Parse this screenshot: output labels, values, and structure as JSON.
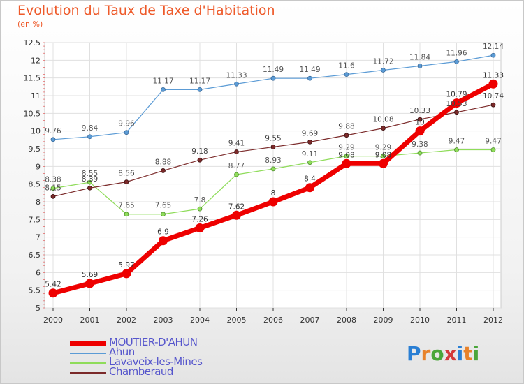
{
  "header": {
    "title": "Evolution du Taux de Taxe d'Habitation",
    "unit": "(en %)"
  },
  "logo": {
    "text": "Proxiti",
    "letter_colors": [
      "#2a7fd4",
      "#e8822a",
      "#4aa63a",
      "#d43a3a",
      "#2a7fd4",
      "#e8822a",
      "#4aa63a"
    ]
  },
  "chart_data": {
    "type": "line",
    "title": "Evolution du Taux de Taxe d'Habitation",
    "subtitle": "(en %)",
    "xlabel": "",
    "ylabel": "",
    "x": [
      "2000",
      "2001",
      "2002",
      "2003",
      "2004",
      "2005",
      "2006",
      "2007",
      "2008",
      "2009",
      "2010",
      "2011",
      "2012"
    ],
    "ylim": [
      5,
      12.5
    ],
    "yticks": [
      "5",
      "5.5",
      "6",
      "6.5",
      "7",
      "7.5",
      "8",
      "8.5",
      "9",
      "9.5",
      "10",
      "10.5",
      "11",
      "11.5",
      "12",
      "12.5"
    ],
    "grid": true,
    "legend_position": "bottom-left",
    "series": [
      {
        "name": "MOUTIER-D'AHUN",
        "color": "#ee0000",
        "values": [
          5.42,
          5.69,
          5.97,
          6.9,
          7.26,
          7.62,
          8,
          8.4,
          9.08,
          9.08,
          10,
          10.79,
          11.33
        ],
        "labels": [
          "5.42",
          "5.69",
          "5.97",
          "6.9",
          "7.26",
          "7.62",
          "8",
          "8.4",
          "9.08",
          "9.08",
          "10",
          "10.79",
          "11.33"
        ]
      },
      {
        "name": "Ahun",
        "color": "#5b9bd5",
        "values": [
          9.76,
          9.84,
          9.96,
          11.17,
          11.17,
          11.33,
          11.49,
          11.49,
          11.6,
          11.72,
          11.84,
          11.96,
          12.14
        ],
        "labels": [
          "9.76",
          "9.84",
          "9.96",
          "11.17",
          "11.17",
          "11.33",
          "11.49",
          "11.49",
          "11.6",
          "11.72",
          "11.84",
          "11.96",
          "12.14"
        ]
      },
      {
        "name": "Lavaveix-les-Mines",
        "color": "#8fdc5a",
        "values": [
          8.38,
          8.55,
          7.65,
          7.65,
          7.8,
          8.77,
          8.93,
          9.11,
          9.29,
          9.29,
          9.38,
          9.47,
          9.47
        ],
        "labels": [
          "8.38",
          "8.55",
          "7.65",
          "7.65",
          "7.8",
          "8.77",
          "8.93",
          "9.11",
          "9.29",
          "9.29",
          "9.38",
          "9.47",
          "9.47"
        ]
      },
      {
        "name": "Chamberaud",
        "color": "#7b2a2a",
        "values": [
          8.15,
          8.39,
          8.56,
          8.88,
          9.18,
          9.41,
          9.55,
          9.69,
          9.88,
          10.08,
          10.33,
          10.53,
          10.74
        ],
        "labels": [
          "8.15",
          "8.39",
          "8.56",
          "8.88",
          "9.18",
          "9.41",
          "9.55",
          "9.69",
          "9.88",
          "10.08",
          "10.33",
          "10.53",
          "10.74"
        ]
      }
    ]
  }
}
